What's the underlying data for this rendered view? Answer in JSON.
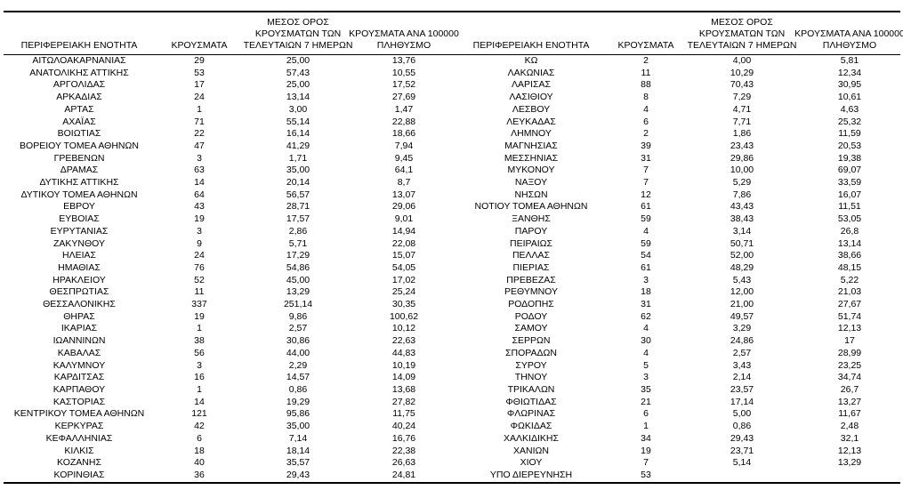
{
  "table": {
    "headers": {
      "region": "ΠΕΡΙΦΕΡΕΙΑΚΗ ΕΝΟΤΗΤΑ",
      "cases": "ΚΡΟΥΣΜΑΤΑ",
      "avg7_lines": [
        "ΜΕΣΟΣ ΟΡΟΣ",
        "ΚΡΟΥΣΜΑΤΩΝ ΤΩΝ",
        "ΤΕΛΕΥΤΑΙΩΝ 7 ΗΜΕΡΩΝ"
      ],
      "per100k_lines": [
        "ΚΡΟΥΣΜΑΤΑ ΑΝΑ 100000",
        "ΠΛΗΘΥΣΜΟ"
      ]
    },
    "left_rows": [
      [
        "ΑΙΤΩΛΟΑΚΑΡΝΑΝΙΑΣ",
        "29",
        "25,00",
        "13,76"
      ],
      [
        "ΑΝΑΤΟΛΙΚΗΣ ΑΤΤΙΚΗΣ",
        "53",
        "57,43",
        "10,55"
      ],
      [
        "ΑΡΓΟΛΙΔΑΣ",
        "17",
        "25,00",
        "17,52"
      ],
      [
        "ΑΡΚΑΔΙΑΣ",
        "24",
        "13,14",
        "27,69"
      ],
      [
        "ΑΡΤΑΣ",
        "1",
        "3,00",
        "1,47"
      ],
      [
        "ΑΧΑΪΑΣ",
        "71",
        "55,14",
        "22,88"
      ],
      [
        "ΒΟΙΩΤΙΑΣ",
        "22",
        "16,14",
        "18,66"
      ],
      [
        "ΒΟΡΕΙΟΥ ΤΟΜΕΑ ΑΘΗΝΩΝ",
        "47",
        "41,29",
        "7,94"
      ],
      [
        "ΓΡΕΒΕΝΩΝ",
        "3",
        "1,71",
        "9,45"
      ],
      [
        "ΔΡΑΜΑΣ",
        "63",
        "35,00",
        "64,1"
      ],
      [
        "ΔΥΤΙΚΗΣ ΑΤΤΙΚΗΣ",
        "14",
        "20,14",
        "8,7"
      ],
      [
        "ΔΥΤΙΚΟΥ ΤΟΜΕΑ ΑΘΗΝΩΝ",
        "64",
        "56,57",
        "13,07"
      ],
      [
        "ΕΒΡΟΥ",
        "43",
        "28,71",
        "29,06"
      ],
      [
        "ΕΥΒΟΙΑΣ",
        "19",
        "17,57",
        "9,01"
      ],
      [
        "ΕΥΡΥΤΑΝΙΑΣ",
        "3",
        "2,86",
        "14,94"
      ],
      [
        "ΖΑΚΥΝΘΟΥ",
        "9",
        "5,71",
        "22,08"
      ],
      [
        "ΗΛΕΙΑΣ",
        "24",
        "17,29",
        "15,07"
      ],
      [
        "ΗΜΑΘΙΑΣ",
        "76",
        "54,86",
        "54,05"
      ],
      [
        "ΗΡΑΚΛΕΙΟΥ",
        "52",
        "45,00",
        "17,02"
      ],
      [
        "ΘΕΣΠΡΩΤΙΑΣ",
        "11",
        "13,29",
        "25,24"
      ],
      [
        "ΘΕΣΣΑΛΟΝΙΚΗΣ",
        "337",
        "251,14",
        "30,35"
      ],
      [
        "ΘΗΡΑΣ",
        "19",
        "9,86",
        "100,62"
      ],
      [
        "ΙΚΑΡΙΑΣ",
        "1",
        "2,57",
        "10,12"
      ],
      [
        "ΙΩΑΝΝΙΝΩΝ",
        "38",
        "30,86",
        "22,63"
      ],
      [
        "ΚΑΒΑΛΑΣ",
        "56",
        "44,00",
        "44,83"
      ],
      [
        "ΚΑΛΥΜΝΟΥ",
        "3",
        "2,29",
        "10,19"
      ],
      [
        "ΚΑΡΔΙΤΣΑΣ",
        "16",
        "14,57",
        "14,09"
      ],
      [
        "ΚΑΡΠΑΘΟΥ",
        "1",
        "0,86",
        "13,68"
      ],
      [
        "ΚΑΣΤΟΡΙΑΣ",
        "14",
        "19,29",
        "27,82"
      ],
      [
        "ΚΕΝΤΡΙΚΟΥ ΤΟΜΕΑ ΑΘΗΝΩΝ",
        "121",
        "95,86",
        "11,75"
      ],
      [
        "ΚΕΡΚΥΡΑΣ",
        "42",
        "35,00",
        "40,24"
      ],
      [
        "ΚΕΦΑΛΛΗΝΙΑΣ",
        "6",
        "7,14",
        "16,76"
      ],
      [
        "ΚΙΛΚΙΣ",
        "18",
        "18,14",
        "22,38"
      ],
      [
        "ΚΟΖΑΝΗΣ",
        "40",
        "35,57",
        "26,63"
      ],
      [
        "ΚΟΡΙΝΘΙΑΣ",
        "36",
        "29,43",
        "24,81"
      ]
    ],
    "right_rows": [
      [
        "ΚΩ",
        "2",
        "4,00",
        "5,81"
      ],
      [
        "ΛΑΚΩΝΙΑΣ",
        "11",
        "10,29",
        "12,34"
      ],
      [
        "ΛΑΡΙΣΑΣ",
        "88",
        "70,43",
        "30,95"
      ],
      [
        "ΛΑΣΙΘΙΟΥ",
        "8",
        "7,29",
        "10,61"
      ],
      [
        "ΛΕΣΒΟΥ",
        "4",
        "4,71",
        "4,63"
      ],
      [
        "ΛΕΥΚΑΔΑΣ",
        "6",
        "7,71",
        "25,32"
      ],
      [
        "ΛΗΜΝΟΥ",
        "2",
        "1,86",
        "11,59"
      ],
      [
        "ΜΑΓΝΗΣΙΑΣ",
        "39",
        "23,43",
        "20,53"
      ],
      [
        "ΜΕΣΣΗΝΙΑΣ",
        "31",
        "29,86",
        "19,38"
      ],
      [
        "ΜΥΚΟΝΟΥ",
        "7",
        "10,00",
        "69,07"
      ],
      [
        "ΝΑΞΟΥ",
        "7",
        "5,29",
        "33,59"
      ],
      [
        "ΝΗΣΩΝ",
        "12",
        "7,86",
        "16,07"
      ],
      [
        "ΝΟΤΙΟΥ ΤΟΜΕΑ ΑΘΗΝΩΝ",
        "61",
        "43,43",
        "11,51"
      ],
      [
        "ΞΑΝΘΗΣ",
        "59",
        "38,43",
        "53,05"
      ],
      [
        "ΠΑΡΟΥ",
        "4",
        "3,14",
        "26,8"
      ],
      [
        "ΠΕΙΡΑΙΩΣ",
        "59",
        "50,71",
        "13,14"
      ],
      [
        "ΠΕΛΛΑΣ",
        "54",
        "52,00",
        "38,66"
      ],
      [
        "ΠΙΕΡΙΑΣ",
        "61",
        "48,29",
        "48,15"
      ],
      [
        "ΠΡΕΒΕΖΑΣ",
        "3",
        "5,43",
        "5,22"
      ],
      [
        "ΡΕΘΥΜΝΟΥ",
        "18",
        "12,00",
        "21,03"
      ],
      [
        "ΡΟΔΟΠΗΣ",
        "31",
        "21,00",
        "27,67"
      ],
      [
        "ΡΟΔΟΥ",
        "62",
        "49,57",
        "51,74"
      ],
      [
        "ΣΑΜΟΥ",
        "4",
        "3,29",
        "12,13"
      ],
      [
        "ΣΕΡΡΩΝ",
        "30",
        "24,86",
        "17"
      ],
      [
        "ΣΠΟΡΑΔΩΝ",
        "4",
        "2,57",
        "28,99"
      ],
      [
        "ΣΥΡΟΥ",
        "5",
        "3,43",
        "23,25"
      ],
      [
        "ΤΗΝΟΥ",
        "3",
        "2,14",
        "34,74"
      ],
      [
        "ΤΡΙΚΑΛΩΝ",
        "35",
        "23,57",
        "26,7"
      ],
      [
        "ΦΘΙΩΤΙΔΑΣ",
        "21",
        "17,14",
        "13,27"
      ],
      [
        "ΦΛΩΡΙΝΑΣ",
        "6",
        "5,00",
        "11,67"
      ],
      [
        "ΦΩΚΙΔΑΣ",
        "1",
        "0,86",
        "2,48"
      ],
      [
        "ΧΑΛΚΙΔΙΚΗΣ",
        "34",
        "29,43",
        "32,1"
      ],
      [
        "ΧΑΝΙΩΝ",
        "19",
        "23,71",
        "12,13"
      ],
      [
        "ΧΙΟΥ",
        "7",
        "5,14",
        "13,29"
      ],
      [
        "ΥΠΟ ΔΙΕΡΕΥΝΗΣΗ",
        "53",
        "",
        ""
      ]
    ]
  }
}
